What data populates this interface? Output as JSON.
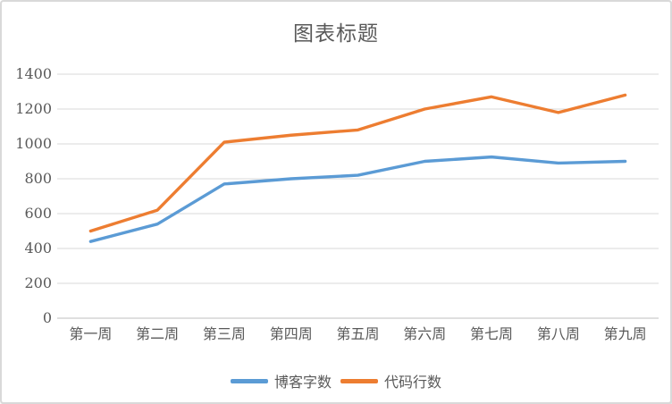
{
  "window": {
    "background": "#ffffff",
    "border_color": "#d9d9d9"
  },
  "chart_data": {
    "type": "line",
    "title": "图表标题",
    "categories": [
      "第一周",
      "第二周",
      "第三周",
      "第四周",
      "第五周",
      "第六周",
      "第七周",
      "第八周",
      "第九周"
    ],
    "series": [
      {
        "name": "博客字数",
        "color": "#5B9BD5",
        "values": [
          440,
          540,
          770,
          800,
          820,
          900,
          925,
          890,
          900
        ]
      },
      {
        "name": "代码行数",
        "color": "#ED7D31",
        "values": [
          500,
          620,
          1010,
          1050,
          1080,
          1200,
          1270,
          1180,
          1280
        ]
      }
    ],
    "xlabel": "",
    "ylabel": "",
    "ylim": [
      0,
      1400
    ],
    "yticks": [
      0,
      200,
      400,
      600,
      800,
      1000,
      1200,
      1400
    ],
    "grid": true,
    "legend_position": "bottom"
  },
  "style_colors": {
    "gridline": "#d9d9d9",
    "axis_line": "#bfbfbf",
    "tick_label": "#595959",
    "title": "#595959"
  }
}
